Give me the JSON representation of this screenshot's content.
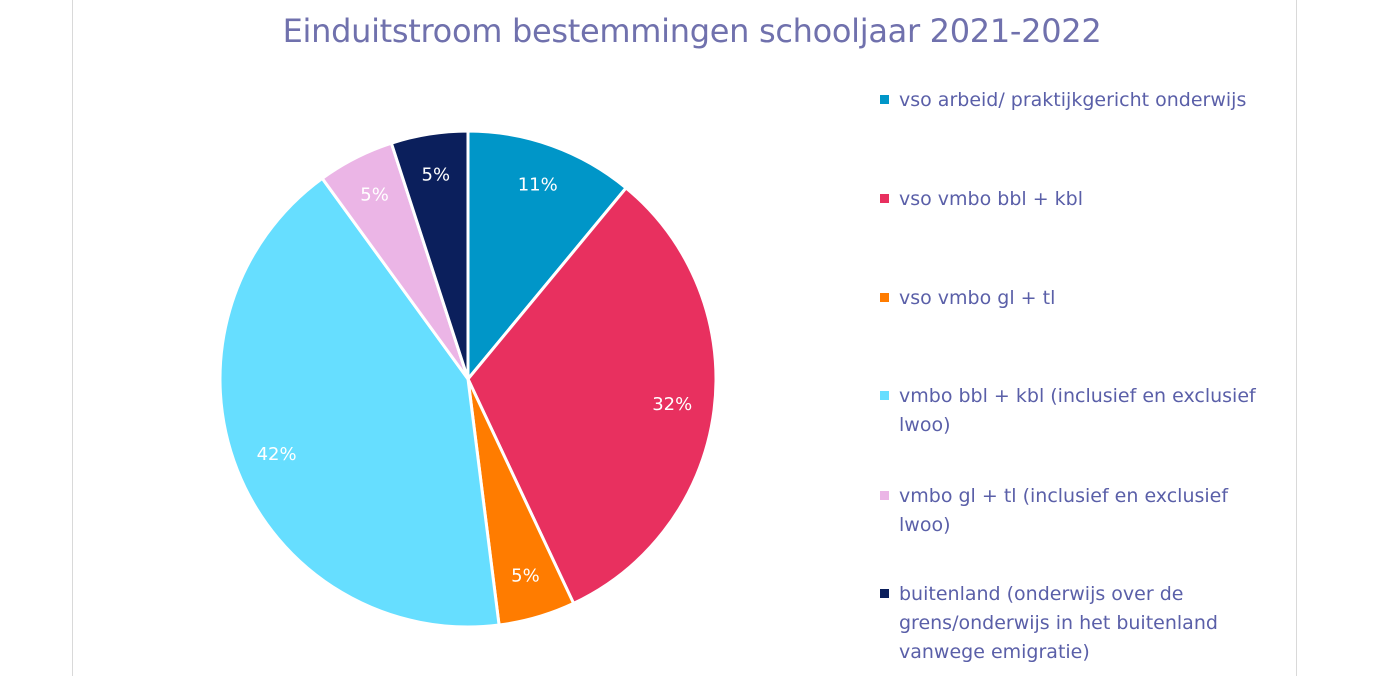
{
  "chart_data": {
    "type": "pie",
    "title": "Einduitstroom bestemmingen schooljaar 2021-2022",
    "slices": [
      {
        "label": "vso arbeid/ praktijkgericht onderwijs",
        "value": 11,
        "data_label": "11%",
        "color": "#0096c8"
      },
      {
        "label": "vso vmbo bbl + kbl",
        "value": 32,
        "data_label": "32%",
        "color": "#e8305f"
      },
      {
        "label": "vso vmbo gl + tl",
        "value": 5,
        "data_label": "5%",
        "color": "#ff7c00"
      },
      {
        "label": "vmbo bbl + kbl (inclusief en exclusief lwoo)",
        "value": 42,
        "data_label": "42%",
        "color": "#66deff"
      },
      {
        "label": "vmbo gl + tl (inclusief en exclusief lwoo)",
        "value": 5,
        "data_label": "5%",
        "color": "#ebb5e6"
      },
      {
        "label": "buitenland (onderwijs over de grens/onderwijs in het buitenland vanwege emigratie)",
        "value": 5,
        "data_label": "5%",
        "color": "#0b1f5c"
      }
    ],
    "legend_position": "right"
  }
}
